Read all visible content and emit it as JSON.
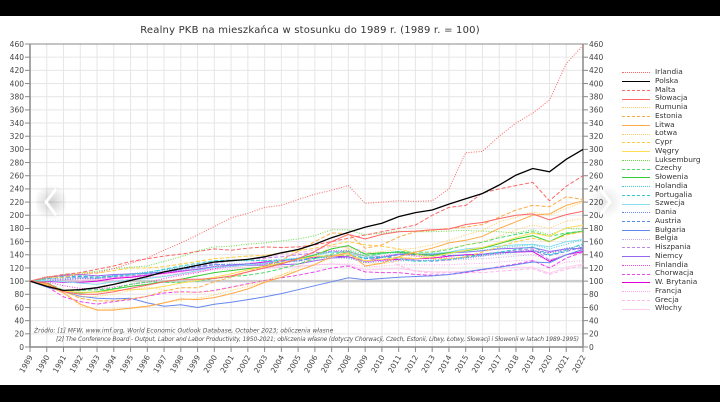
{
  "chart_data": {
    "type": "line",
    "title": "Realny PKB na mieszkańca w stosunku do 1989 r. (1989 r. = 100)",
    "xlabel": "",
    "ylabel": "",
    "ylim": [
      0,
      460
    ],
    "yticks": [
      0,
      20,
      40,
      60,
      80,
      100,
      120,
      140,
      160,
      180,
      200,
      220,
      240,
      260,
      280,
      300,
      320,
      340,
      360,
      380,
      400,
      420,
      440,
      460
    ],
    "grid": true,
    "legend_position": "right",
    "reference_line": 100,
    "x": [
      "1989",
      "1990",
      "1991",
      "1992",
      "1993",
      "1994",
      "1995",
      "1996",
      "1997",
      "1998",
      "1999",
      "2000",
      "2001",
      "2002",
      "2003",
      "2004",
      "2005",
      "2006",
      "2007",
      "2008",
      "2009",
      "2010",
      "2011",
      "2012",
      "2013",
      "2014",
      "2015",
      "2016",
      "2017",
      "2018",
      "2019",
      "2020",
      "2021",
      "2022"
    ],
    "annotations": [
      "Źródło: [1] MFW, www.imf.org, World Economic Outlook Database, October 2023; obliczenia własne",
      "[2] The Conference Board - Output, Labor and Labor Productivity, 1950-2021; obliczenia własne (dotyczy Chorwacji, Czech, Estonii, Litwy, Łotwy, Słowacji i Słowenii w latach 1989-1995)"
    ],
    "series": [
      {
        "name": "Irlandia",
        "color": "#ff6666",
        "dash": "dot",
        "values": [
          100,
          107,
          108,
          110,
          113,
          119,
          127,
          135,
          147,
          158,
          170,
          183,
          196,
          203,
          212,
          215,
          224,
          232,
          238,
          245,
          218,
          220,
          222,
          221,
          222,
          240,
          295,
          297,
          320,
          340,
          355,
          375,
          430,
          458
        ]
      },
      {
        "name": "Polska",
        "color": "#000000",
        "dash": "solid",
        "values": [
          100,
          92,
          86,
          87,
          90,
          95,
          101,
          107,
          114,
          119,
          124,
          129,
          131,
          133,
          137,
          143,
          148,
          156,
          166,
          174,
          182,
          188,
          198,
          204,
          208,
          217,
          225,
          233,
          246,
          261,
          271,
          266,
          285,
          300
        ]
      },
      {
        "name": "Malta",
        "color": "#ff6666",
        "dash": "dash",
        "values": [
          100,
          106,
          110,
          113,
          118,
          123,
          130,
          134,
          138,
          141,
          145,
          149,
          147,
          150,
          152,
          151,
          152,
          155,
          160,
          165,
          170,
          175,
          180,
          185,
          200,
          212,
          215,
          234,
          240,
          245,
          250,
          222,
          244,
          260
        ]
      },
      {
        "name": "Słowacja",
        "color": "#ff6666",
        "dash": "solid",
        "values": [
          100,
          97,
          84,
          80,
          80,
          84,
          89,
          94,
          99,
          103,
          103,
          104,
          108,
          114,
          120,
          126,
          134,
          145,
          160,
          171,
          164,
          171,
          175,
          176,
          178,
          179,
          186,
          189,
          195,
          200,
          202,
          193,
          201,
          206
        ]
      },
      {
        "name": "Rumunia",
        "color": "#ffcc66",
        "dash": "dot",
        "values": [
          100,
          95,
          83,
          76,
          77,
          80,
          86,
          91,
          87,
          83,
          83,
          85,
          90,
          95,
          101,
          110,
          116,
          126,
          135,
          150,
          143,
          145,
          148,
          150,
          155,
          162,
          170,
          177,
          190,
          197,
          205,
          200,
          210,
          220
        ]
      },
      {
        "name": "Estonia",
        "color": "#ffaa44",
        "dash": "dash",
        "values": [
          100,
          95,
          85,
          74,
          70,
          70,
          73,
          77,
          85,
          90,
          90,
          99,
          106,
          114,
          123,
          132,
          145,
          160,
          173,
          172,
          150,
          155,
          167,
          175,
          177,
          180,
          182,
          186,
          197,
          208,
          215,
          213,
          228,
          224
        ]
      },
      {
        "name": "Litwa",
        "color": "#ffaa44",
        "dash": "solid",
        "values": [
          100,
          94,
          82,
          65,
          56,
          56,
          59,
          62,
          67,
          73,
          72,
          75,
          81,
          88,
          98,
          106,
          116,
          125,
          138,
          143,
          123,
          127,
          137,
          144,
          150,
          158,
          162,
          168,
          180,
          190,
          200,
          202,
          215,
          222
        ]
      },
      {
        "name": "Łotwa",
        "color": "#ffcc66",
        "dash": "dot",
        "values": [
          100,
          97,
          86,
          62,
          57,
          58,
          58,
          61,
          67,
          71,
          74,
          79,
          86,
          92,
          99,
          109,
          121,
          138,
          153,
          150,
          128,
          126,
          131,
          139,
          145,
          150,
          155,
          160,
          168,
          178,
          185,
          180,
          191,
          195
        ]
      },
      {
        "name": "Cypr",
        "color": "#ffcc44",
        "dash": "dash",
        "values": [
          100,
          106,
          105,
          113,
          112,
          116,
          120,
          120,
          122,
          126,
          130,
          134,
          136,
          138,
          139,
          143,
          146,
          150,
          155,
          160,
          155,
          153,
          149,
          142,
          134,
          134,
          137,
          144,
          152,
          160,
          165,
          160,
          170,
          175
        ]
      },
      {
        "name": "Węgry",
        "color": "#ffdd55",
        "dash": "solid",
        "values": [
          100,
          96,
          85,
          83,
          83,
          86,
          87,
          88,
          92,
          97,
          101,
          106,
          111,
          117,
          122,
          128,
          133,
          138,
          138,
          140,
          131,
          133,
          136,
          134,
          137,
          142,
          147,
          151,
          158,
          166,
          173,
          168,
          181,
          185
        ]
      },
      {
        "name": "Luksemburg",
        "color": "#66dd44",
        "dash": "dot",
        "values": [
          100,
          104,
          110,
          112,
          115,
          119,
          121,
          123,
          130,
          137,
          146,
          152,
          153,
          156,
          158,
          161,
          164,
          169,
          178,
          178,
          170,
          173,
          176,
          175,
          175,
          176,
          177,
          176,
          175,
          173,
          178,
          170,
          180,
          179
        ]
      },
      {
        "name": "Czechy",
        "color": "#44dd66",
        "dash": "dash",
        "values": [
          100,
          98,
          86,
          86,
          87,
          89,
          95,
          99,
          98,
          98,
          100,
          104,
          107,
          109,
          113,
          119,
          126,
          134,
          141,
          145,
          138,
          142,
          145,
          144,
          144,
          148,
          155,
          159,
          166,
          171,
          175,
          168,
          173,
          176
        ]
      },
      {
        "name": "Słowenia",
        "color": "#33cc33",
        "dash": "solid",
        "values": [
          100,
          95,
          86,
          82,
          84,
          88,
          92,
          95,
          99,
          103,
          108,
          113,
          116,
          119,
          122,
          127,
          133,
          140,
          149,
          154,
          141,
          143,
          144,
          141,
          139,
          143,
          146,
          150,
          157,
          164,
          169,
          160,
          172,
          176
        ]
      },
      {
        "name": "Holandia",
        "color": "#44ccdd",
        "dash": "dot",
        "values": [
          100,
          103,
          104,
          105,
          105,
          108,
          110,
          113,
          117,
          121,
          125,
          130,
          131,
          131,
          131,
          133,
          135,
          139,
          144,
          147,
          141,
          142,
          143,
          141,
          140,
          142,
          144,
          147,
          150,
          153,
          155,
          149,
          156,
          163
        ]
      },
      {
        "name": "Portugalia",
        "color": "#33cccc",
        "dash": "dash",
        "values": [
          100,
          104,
          107,
          108,
          106,
          107,
          110,
          113,
          118,
          123,
          127,
          131,
          132,
          132,
          131,
          132,
          133,
          135,
          138,
          139,
          135,
          137,
          134,
          130,
          131,
          133,
          136,
          140,
          144,
          148,
          152,
          140,
          147,
          157
        ]
      },
      {
        "name": "Szwecja",
        "color": "#88ddee",
        "dash": "solid",
        "values": [
          100,
          101,
          99,
          97,
          95,
          99,
          102,
          104,
          107,
          111,
          116,
          121,
          122,
          125,
          127,
          132,
          135,
          140,
          144,
          143,
          135,
          142,
          145,
          142,
          142,
          144,
          149,
          151,
          153,
          155,
          156,
          152,
          160,
          163
        ]
      },
      {
        "name": "Dania",
        "color": "#6688ee",
        "dash": "dot",
        "values": [
          100,
          101,
          102,
          104,
          104,
          109,
          111,
          114,
          117,
          119,
          121,
          125,
          126,
          126,
          126,
          128,
          131,
          135,
          136,
          135,
          128,
          130,
          131,
          131,
          132,
          133,
          135,
          138,
          141,
          144,
          146,
          143,
          150,
          154
        ]
      },
      {
        "name": "Austria",
        "color": "#5588ee",
        "dash": "dash",
        "values": [
          100,
          104,
          106,
          107,
          106,
          108,
          110,
          112,
          114,
          118,
          121,
          125,
          125,
          126,
          127,
          129,
          131,
          135,
          139,
          140,
          134,
          136,
          140,
          140,
          139,
          139,
          139,
          140,
          143,
          145,
          146,
          139,
          145,
          152
        ]
      },
      {
        "name": "Bułgaria",
        "color": "#6688ee",
        "dash": "solid",
        "values": [
          100,
          91,
          84,
          77,
          74,
          73,
          74,
          67,
          62,
          64,
          60,
          65,
          68,
          72,
          76,
          81,
          87,
          93,
          99,
          105,
          102,
          104,
          106,
          107,
          108,
          110,
          114,
          118,
          121,
          125,
          129,
          128,
          140,
          148
        ]
      },
      {
        "name": "Belgia",
        "color": "#ccaaee",
        "dash": "dot",
        "values": [
          100,
          103,
          105,
          106,
          104,
          107,
          109,
          110,
          113,
          116,
          119,
          123,
          123,
          125,
          125,
          128,
          130,
          132,
          135,
          135,
          130,
          132,
          132,
          132,
          131,
          132,
          133,
          134,
          136,
          138,
          140,
          132,
          140,
          143
        ]
      },
      {
        "name": "Hiszpania",
        "color": "#bb88ee",
        "dash": "dash",
        "values": [
          100,
          104,
          106,
          106,
          104,
          106,
          108,
          110,
          114,
          118,
          122,
          127,
          131,
          133,
          135,
          137,
          140,
          143,
          145,
          145,
          138,
          137,
          136,
          132,
          130,
          132,
          137,
          141,
          144,
          147,
          149,
          132,
          140,
          148
        ]
      },
      {
        "name": "Niemcy",
        "color": "#9966ee",
        "dash": "solid",
        "values": [
          100,
          105,
          109,
          110,
          108,
          110,
          111,
          112,
          114,
          116,
          118,
          122,
          124,
          124,
          124,
          125,
          126,
          131,
          135,
          137,
          130,
          136,
          141,
          141,
          141,
          143,
          144,
          146,
          149,
          150,
          151,
          145,
          149,
          150
        ]
      },
      {
        "name": "Finlandia",
        "color": "#ee44dd",
        "dash": "dot",
        "values": [
          100,
          99,
          93,
          89,
          88,
          91,
          95,
          98,
          104,
          109,
          113,
          119,
          122,
          124,
          126,
          131,
          135,
          140,
          146,
          146,
          134,
          138,
          141,
          138,
          136,
          135,
          136,
          139,
          143,
          145,
          147,
          143,
          148,
          149
        ]
      },
      {
        "name": "Chorwacja",
        "color": "#ee44ee",
        "dash": "dash",
        "values": [
          100,
          92,
          76,
          69,
          65,
          69,
          72,
          77,
          82,
          84,
          83,
          86,
          91,
          96,
          101,
          105,
          109,
          114,
          120,
          123,
          114,
          113,
          113,
          110,
          109,
          110,
          113,
          117,
          122,
          126,
          131,
          120,
          135,
          144
        ]
      },
      {
        "name": "W. Brytania",
        "color": "#dd00dd",
        "dash": "solid",
        "values": [
          100,
          100,
          98,
          98,
          100,
          104,
          106,
          109,
          112,
          115,
          118,
          122,
          124,
          126,
          129,
          131,
          134,
          136,
          138,
          137,
          130,
          132,
          133,
          134,
          135,
          138,
          140,
          141,
          143,
          144,
          145,
          130,
          140,
          145
        ]
      },
      {
        "name": "Francja",
        "color": "#ffaaee",
        "dash": "dot",
        "values": [
          100,
          102,
          102,
          103,
          102,
          104,
          105,
          106,
          108,
          111,
          114,
          117,
          118,
          119,
          119,
          121,
          122,
          124,
          126,
          126,
          122,
          123,
          125,
          125,
          125,
          125,
          126,
          127,
          129,
          131,
          132,
          121,
          129,
          131
        ]
      },
      {
        "name": "Grecja",
        "color": "#ffbbee",
        "dash": "dash",
        "values": [
          100,
          100,
          102,
          101,
          99,
          101,
          103,
          105,
          108,
          111,
          114,
          118,
          122,
          127,
          134,
          141,
          142,
          148,
          153,
          152,
          145,
          137,
          124,
          115,
          112,
          113,
          113,
          113,
          115,
          117,
          119,
          110,
          118,
          124
        ]
      },
      {
        "name": "Włochy",
        "color": "#ffccee",
        "dash": "solid",
        "values": [
          100,
          102,
          103,
          104,
          103,
          105,
          108,
          109,
          111,
          113,
          115,
          119,
          121,
          121,
          121,
          122,
          123,
          125,
          126,
          124,
          117,
          118,
          119,
          116,
          114,
          114,
          115,
          117,
          119,
          121,
          121,
          112,
          121,
          126
        ]
      }
    ]
  },
  "nav": {
    "prev_label": "previous",
    "next_label": "next"
  }
}
